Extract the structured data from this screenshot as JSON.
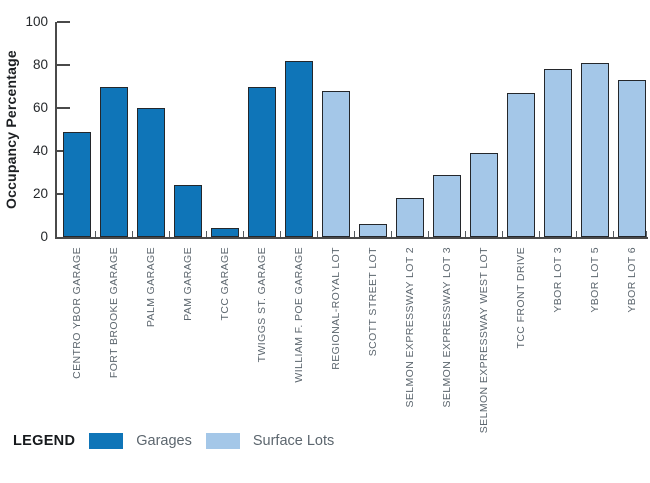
{
  "chart_data": {
    "type": "bar",
    "title": "",
    "xlabel": "",
    "ylabel": "Occupancy Percentage",
    "ylim": [
      0,
      100
    ],
    "y_major_ticks": [
      0,
      20,
      40,
      60,
      80,
      100
    ],
    "grid": false,
    "legend_position": "bottom-left",
    "categories": [
      "CENTRO YBOR GARAGE",
      "FORT BROOKE GARAGE",
      "PALM GARAGE",
      "PAM GARAGE",
      "TCC GARAGE",
      "TWIGGS ST. GARAGE",
      "WILLIAM F. POE GARAGE",
      "REGIONAL-ROYAL LOT",
      "SCOTT STREET LOT",
      "SELMON EXPRESSWAY LOT 2",
      "SELMON EXPRESSWAY LOT 3",
      "SELMON EXPRESSWAY WEST LOT",
      "TCC FRONT DRIVE",
      "YBOR LOT 3",
      "YBOR LOT 5",
      "YBOR LOT 6"
    ],
    "values": [
      49,
      70,
      60,
      24,
      4,
      70,
      82,
      68,
      6,
      18,
      29,
      39,
      67,
      78,
      81,
      73
    ],
    "groups": [
      "Garages",
      "Garages",
      "Garages",
      "Garages",
      "Garages",
      "Garages",
      "Garages",
      "Surface Lots",
      "Surface Lots",
      "Surface Lots",
      "Surface Lots",
      "Surface Lots",
      "Surface Lots",
      "Surface Lots",
      "Surface Lots",
      "Surface Lots"
    ]
  },
  "legend": {
    "title": "LEGEND",
    "items": [
      {
        "label": "Garages",
        "color": "#0f75b8"
      },
      {
        "label": "Surface Lots",
        "color": "#a4c7e8"
      }
    ]
  },
  "colors": {
    "axis": "#4a4a4a",
    "bar_border": "#24272b",
    "tick_label": "#25282b",
    "category_label": "#5c666e"
  }
}
